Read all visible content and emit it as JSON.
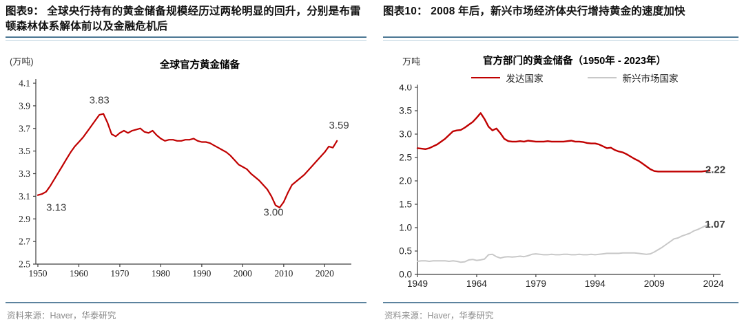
{
  "figures": [
    {
      "heading": "图表9：  全球央行持有的黄金储备规模经历过两轮明显的回升，分别是布雷顿森林体系解体前以及金融危机后",
      "unit_label": "(万吨)",
      "chart_title": "全球官方黄金储备",
      "source": "资料来源：Haver，华泰研究"
    },
    {
      "heading": "图表10：  2008 年后，新兴市场经济体央行增持黄金的速度加快",
      "unit_label": "万吨",
      "chart_title": "官方部门的黄金储备（1950年 - 2023年）",
      "legend": [
        {
          "label": "发达国家"
        },
        {
          "label": "新兴市场国家"
        }
      ],
      "source": "资料来源：Haver，华泰研究"
    }
  ],
  "colors": {
    "accent_red": "#c00000",
    "light_gray_series": "#c8c8c8",
    "heading_rule_blue": "#4d7894",
    "axis": "#3f3f3f"
  },
  "chart_data": [
    {
      "type": "line",
      "title": "全球官方黄金储备",
      "ylabel": "(万吨)",
      "xlim": [
        1949.5,
        2026.5
      ],
      "ylim": [
        2.5,
        4.1
      ],
      "y_ticks": [
        "2.5",
        "2.7",
        "2.9",
        "3.1",
        "3.3",
        "3.5",
        "3.7",
        "3.9",
        "4.1"
      ],
      "x_ticks": [
        "1950",
        "1960",
        "1970",
        "1980",
        "1990",
        "2000",
        "2010",
        "2020"
      ],
      "tick_font": "serif",
      "grid": false,
      "legend_position": "none",
      "margins": {
        "l": 44,
        "t": 16,
        "r": 22,
        "b": 33
      },
      "series": [
        {
          "name": "全球官方黄金储备",
          "color": "#c00000",
          "width": 2.2,
          "x_start": 1950,
          "values": [
            3.11,
            3.12,
            3.14,
            3.19,
            3.25,
            3.31,
            3.37,
            3.43,
            3.49,
            3.54,
            3.58,
            3.62,
            3.67,
            3.72,
            3.77,
            3.82,
            3.83,
            3.75,
            3.65,
            3.63,
            3.66,
            3.68,
            3.66,
            3.68,
            3.69,
            3.7,
            3.67,
            3.66,
            3.68,
            3.64,
            3.61,
            3.59,
            3.6,
            3.6,
            3.59,
            3.59,
            3.6,
            3.6,
            3.61,
            3.59,
            3.58,
            3.58,
            3.57,
            3.55,
            3.53,
            3.51,
            3.49,
            3.46,
            3.42,
            3.38,
            3.36,
            3.34,
            3.3,
            3.27,
            3.24,
            3.2,
            3.16,
            3.1,
            3.02,
            3.0,
            3.05,
            3.13,
            3.2,
            3.23,
            3.26,
            3.29,
            3.33,
            3.37,
            3.41,
            3.45,
            3.49,
            3.54,
            3.53,
            3.59
          ]
        }
      ],
      "annotations": [
        {
          "label": "3.13",
          "x": 1954.5,
          "y": 2.97
        },
        {
          "label": "3.83",
          "x": 1965,
          "y": 3.92
        },
        {
          "label": "3.00",
          "x": 2007.5,
          "y": 2.93
        },
        {
          "label": "3.59",
          "x": 2023.5,
          "y": 3.7
        }
      ]
    },
    {
      "type": "line",
      "title": "官方部门的黄金储备（1950年 - 2023年）",
      "ylabel": "万吨",
      "xlim": [
        1949,
        2025.8
      ],
      "ylim": [
        0.0,
        4.0
      ],
      "y_ticks": [
        "0.0",
        "0.5",
        "1.0",
        "1.5",
        "2.0",
        "2.5",
        "3.0",
        "3.5",
        "4.0"
      ],
      "x_ticks": [
        "1949",
        "1964",
        "1979",
        "1994",
        "2009",
        "2024"
      ],
      "tick_font": "sans",
      "grid": false,
      "legend_position": "top",
      "margins": {
        "l": 50,
        "t": 4,
        "r": 26,
        "b": 36
      },
      "series": [
        {
          "name": "发达国家",
          "color": "#c00000",
          "width": 2.4,
          "x_start": 1949,
          "values": [
            2.7,
            2.69,
            2.68,
            2.7,
            2.74,
            2.78,
            2.84,
            2.9,
            2.98,
            3.06,
            3.08,
            3.09,
            3.14,
            3.2,
            3.26,
            3.35,
            3.45,
            3.32,
            3.16,
            3.08,
            3.12,
            3.02,
            2.9,
            2.85,
            2.84,
            2.84,
            2.85,
            2.84,
            2.86,
            2.85,
            2.84,
            2.84,
            2.84,
            2.85,
            2.84,
            2.84,
            2.84,
            2.84,
            2.85,
            2.86,
            2.84,
            2.84,
            2.83,
            2.81,
            2.8,
            2.8,
            2.78,
            2.74,
            2.7,
            2.71,
            2.66,
            2.63,
            2.61,
            2.57,
            2.52,
            2.47,
            2.43,
            2.37,
            2.31,
            2.25,
            2.21,
            2.2,
            2.2,
            2.2,
            2.2,
            2.2,
            2.2,
            2.2,
            2.2,
            2.2,
            2.2,
            2.2,
            2.2,
            2.21,
            2.22
          ]
        },
        {
          "name": "新兴市场国家",
          "color": "#c8c8c8",
          "width": 2.0,
          "x_start": 1949,
          "values": [
            0.28,
            0.29,
            0.29,
            0.28,
            0.29,
            0.29,
            0.29,
            0.29,
            0.28,
            0.29,
            0.28,
            0.26,
            0.27,
            0.31,
            0.32,
            0.3,
            0.31,
            0.33,
            0.42,
            0.43,
            0.38,
            0.35,
            0.37,
            0.38,
            0.37,
            0.38,
            0.39,
            0.38,
            0.4,
            0.43,
            0.44,
            0.43,
            0.42,
            0.42,
            0.43,
            0.42,
            0.42,
            0.43,
            0.43,
            0.42,
            0.42,
            0.43,
            0.42,
            0.42,
            0.43,
            0.42,
            0.43,
            0.44,
            0.45,
            0.45,
            0.45,
            0.45,
            0.46,
            0.46,
            0.46,
            0.46,
            0.45,
            0.44,
            0.43,
            0.44,
            0.48,
            0.53,
            0.58,
            0.64,
            0.7,
            0.76,
            0.78,
            0.82,
            0.85,
            0.88,
            0.93,
            0.96,
            1.0,
            1.04,
            1.07
          ]
        }
      ],
      "annotations": [
        {
          "label": "2.22",
          "x": 2024.5,
          "y": 2.17,
          "color": "#c00000",
          "bold": true
        },
        {
          "label": "1.07",
          "x": 2024.4,
          "y": 1.0,
          "color": "#c2c2c2",
          "bold": true
        }
      ]
    }
  ]
}
